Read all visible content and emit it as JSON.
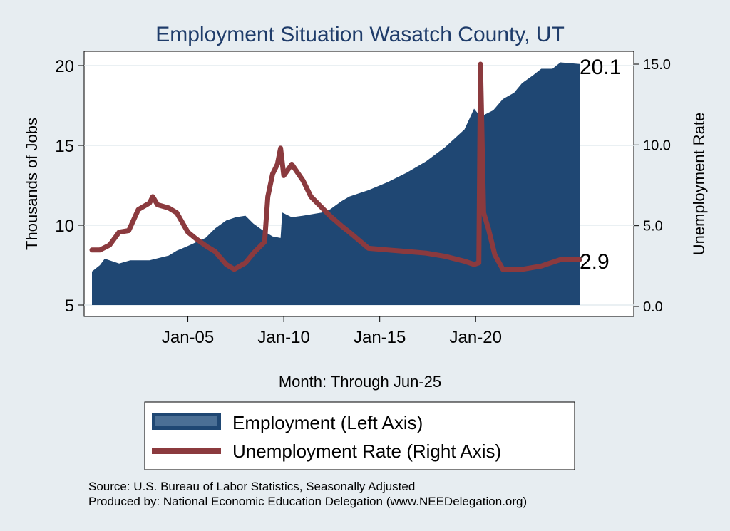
{
  "chart_data": {
    "type": "area+line",
    "title": "Employment Situation Wasatch  County, UT",
    "xlabel": "Month: Through Jun-25",
    "ylabel_left": "Thousands of Jobs",
    "ylabel_right": "Unemployment Rate",
    "x_ticks": [
      "Jan-05",
      "Jan-10",
      "Jan-15",
      "Jan-20"
    ],
    "y_left_ticks": [
      "5",
      "10",
      "15",
      "20"
    ],
    "y_left_range": [
      5,
      20.9
    ],
    "y_right_ticks": [
      "0.0",
      "5.0",
      "10.0",
      "15.0"
    ],
    "y_right_range": [
      0,
      15.0
    ],
    "x_range": [
      "2000-01",
      "2025-06"
    ],
    "grid": true,
    "legend_position": "bottom",
    "end_labels": {
      "employment": "20.1",
      "unemployment": "2.9"
    },
    "colors": {
      "employment": "#1f4773",
      "unemployment": "#8b3a3e",
      "background": "#e7edf1",
      "plot_bg": "#ffffff",
      "title": "#1f3c6a"
    },
    "series": [
      {
        "name": "Employment (Left Axis)",
        "axis": "left",
        "kind": "area",
        "points": [
          [
            "2000-01",
            7.1
          ],
          [
            "2000-06",
            7.5
          ],
          [
            "2000-09",
            7.9
          ],
          [
            "2001-06",
            7.6
          ],
          [
            "2002-01",
            7.8
          ],
          [
            "2003-01",
            7.8
          ],
          [
            "2004-01",
            8.1
          ],
          [
            "2004-06",
            8.4
          ],
          [
            "2005-01",
            8.7
          ],
          [
            "2005-12",
            9.2
          ],
          [
            "2006-06",
            9.8
          ],
          [
            "2007-01",
            10.3
          ],
          [
            "2007-07",
            10.5
          ],
          [
            "2008-01",
            10.6
          ],
          [
            "2008-06",
            10.1
          ],
          [
            "2009-01",
            9.6
          ],
          [
            "2009-06",
            9.3
          ],
          [
            "2009-11",
            9.2
          ],
          [
            "2009-12",
            10.8
          ],
          [
            "2010-06",
            10.5
          ],
          [
            "2011-01",
            10.6
          ],
          [
            "2012-01",
            10.8
          ],
          [
            "2012-06",
            11.0
          ],
          [
            "2013-01",
            11.5
          ],
          [
            "2013-06",
            11.8
          ],
          [
            "2014-06",
            12.2
          ],
          [
            "2015-06",
            12.7
          ],
          [
            "2016-06",
            13.3
          ],
          [
            "2017-06",
            14.0
          ],
          [
            "2018-06",
            14.9
          ],
          [
            "2019-06",
            16.0
          ],
          [
            "2019-12",
            17.3
          ],
          [
            "2020-04",
            16.8
          ],
          [
            "2020-12",
            17.2
          ],
          [
            "2021-06",
            17.9
          ],
          [
            "2022-01",
            18.3
          ],
          [
            "2022-06",
            18.9
          ],
          [
            "2023-01",
            19.4
          ],
          [
            "2023-06",
            19.8
          ],
          [
            "2024-01",
            19.8
          ],
          [
            "2024-06",
            20.2
          ],
          [
            "2025-06",
            20.1
          ]
        ]
      },
      {
        "name": "Unemployment Rate (Right Axis)",
        "axis": "right",
        "kind": "line",
        "points": [
          [
            "2000-01",
            3.5
          ],
          [
            "2000-06",
            3.5
          ],
          [
            "2000-12",
            3.8
          ],
          [
            "2001-06",
            4.6
          ],
          [
            "2001-12",
            4.7
          ],
          [
            "2002-06",
            6.0
          ],
          [
            "2003-01",
            6.4
          ],
          [
            "2003-03",
            6.8
          ],
          [
            "2003-06",
            6.3
          ],
          [
            "2004-01",
            6.1
          ],
          [
            "2004-06",
            5.8
          ],
          [
            "2005-01",
            4.6
          ],
          [
            "2005-06",
            4.2
          ],
          [
            "2006-01",
            3.7
          ],
          [
            "2006-06",
            3.4
          ],
          [
            "2007-01",
            2.6
          ],
          [
            "2007-06",
            2.3
          ],
          [
            "2008-01",
            2.7
          ],
          [
            "2008-06",
            3.3
          ],
          [
            "2009-01",
            4.0
          ],
          [
            "2009-03",
            6.8
          ],
          [
            "2009-06",
            8.2
          ],
          [
            "2009-09",
            8.8
          ],
          [
            "2009-11",
            9.8
          ],
          [
            "2010-01",
            8.1
          ],
          [
            "2010-06",
            8.8
          ],
          [
            "2011-01",
            7.8
          ],
          [
            "2011-06",
            6.8
          ],
          [
            "2012-06",
            5.6
          ],
          [
            "2013-01",
            5.0
          ],
          [
            "2013-06",
            4.6
          ],
          [
            "2014-06",
            3.6
          ],
          [
            "2015-06",
            3.5
          ],
          [
            "2016-06",
            3.4
          ],
          [
            "2017-06",
            3.3
          ],
          [
            "2018-06",
            3.1
          ],
          [
            "2019-06",
            2.8
          ],
          [
            "2019-12",
            2.6
          ],
          [
            "2020-03",
            2.7
          ],
          [
            "2020-04",
            15.0
          ],
          [
            "2020-06",
            5.8
          ],
          [
            "2020-09",
            4.8
          ],
          [
            "2021-01",
            3.2
          ],
          [
            "2021-06",
            2.3
          ],
          [
            "2022-06",
            2.3
          ],
          [
            "2023-06",
            2.5
          ],
          [
            "2024-06",
            2.9
          ],
          [
            "2025-06",
            2.9
          ]
        ]
      }
    ]
  },
  "notes": {
    "source": "Source: U.S. Bureau of Labor Statistics, Seasonally Adjusted",
    "produced_by": "Produced by: National Economic Education Delegation (www.NEEDelegation.org)"
  }
}
